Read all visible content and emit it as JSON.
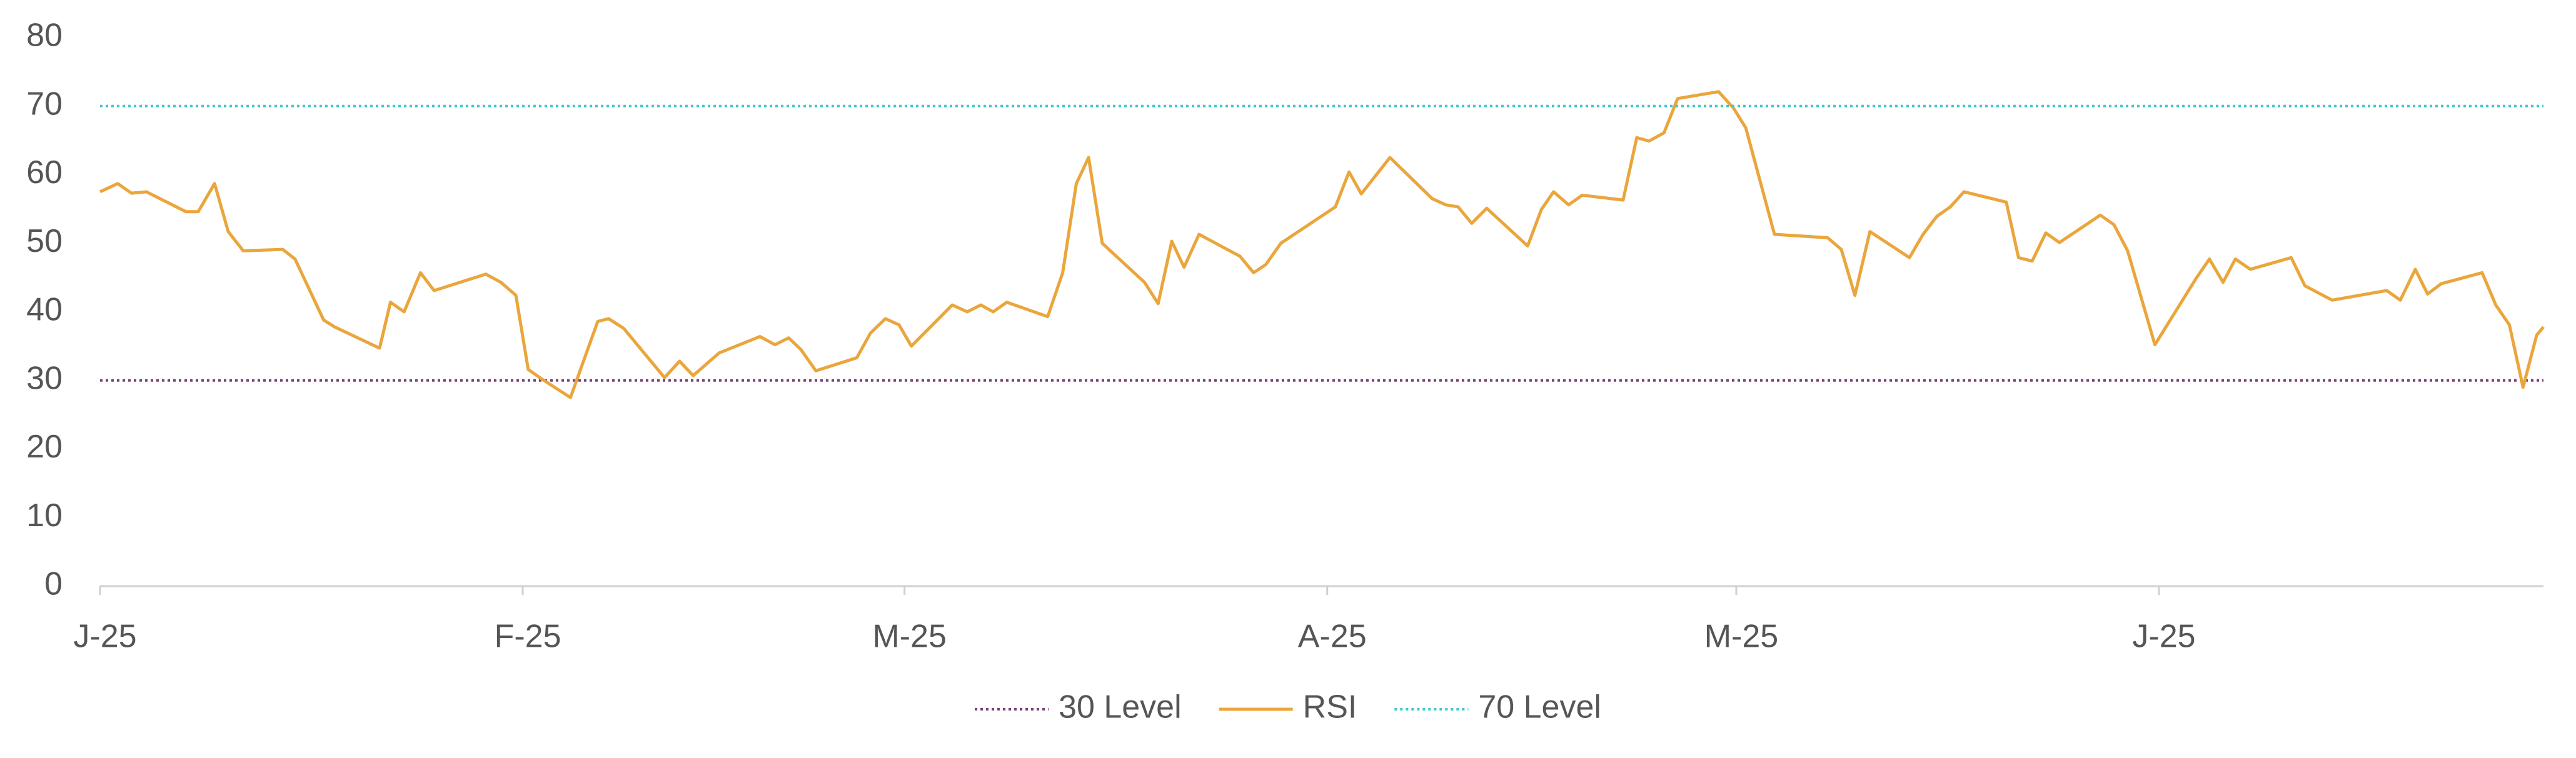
{
  "chart_data": {
    "type": "line",
    "xlim": [
      0,
      179.2
    ],
    "xticks": [
      {
        "value": 0,
        "label": "J-25"
      },
      {
        "value": 31,
        "label": "F-25"
      },
      {
        "value": 59,
        "label": "M-25"
      },
      {
        "value": 90,
        "label": "A-25"
      },
      {
        "value": 120,
        "label": "M-25"
      },
      {
        "value": 151,
        "label": "J-25"
      }
    ],
    "ylim": [
      0,
      80
    ],
    "yticks": [
      0,
      10,
      20,
      30,
      40,
      50,
      60,
      70,
      80
    ],
    "legend": "bottom",
    "x": [
      0,
      1.3,
      2.3,
      3.4,
      6.3,
      7.2,
      8.4,
      9.4,
      10.5,
      13.4,
      14.3,
      16.4,
      17.2,
      20.5,
      21.3,
      22.3,
      23.5,
      24.5,
      28.3,
      29.4,
      30.5,
      31.4,
      32.4,
      34.5,
      36.5,
      37.3,
      38.4,
      41.4,
      42.5,
      43.5,
      45.4,
      48.4,
      49.5,
      50.5,
      51.4,
      52.5,
      55.5,
      56.5,
      57.6,
      58.6,
      59.5,
      62.5,
      63.6,
      64.6,
      65.5,
      66.5,
      69.5,
      70.6,
      71.6,
      72.5,
      73.5,
      76.6,
      77.6,
      78.6,
      79.5,
      80.6,
      83.6,
      84.6,
      85.5,
      86.6,
      90.6,
      91.6,
      92.5,
      94.6,
      97.7,
      98.7,
      99.6,
      100.6,
      101.7,
      104.7,
      105.7,
      106.6,
      107.7,
      108.7,
      111.7,
      112.7,
      113.6,
      114.7,
      115.7,
      118.7,
      119.8,
      120.7,
      122.8,
      126.7,
      127.7,
      128.7,
      129.8,
      132.7,
      133.7,
      134.7,
      135.7,
      136.7,
      139.8,
      140.7,
      141.7,
      142.7,
      143.7,
      146.7,
      147.7,
      148.7,
      150.7,
      153.7,
      154.7,
      155.7,
      156.6,
      157.7,
      160.7,
      161.7,
      163.7,
      167.7,
      168.7,
      169.8,
      170.7,
      171.7,
      174.7,
      175.7,
      176.7,
      177.7,
      178.7,
      179.2
    ],
    "series": [
      {
        "name": "30 Level",
        "color": "#7a3d7a",
        "dash": "dotted",
        "value": 30
      },
      {
        "name": "RSI",
        "color": "#eaa63c",
        "dash": "solid",
        "values": [
          57.5,
          58.7,
          57.3,
          57.5,
          54.6,
          54.6,
          58.7,
          51.7,
          48.9,
          49.1,
          47.7,
          38.8,
          37.8,
          34.7,
          41.4,
          40,
          45.7,
          43.1,
          45.5,
          44.3,
          42.4,
          31.6,
          30.2,
          27.5,
          38.6,
          39,
          37.6,
          30.4,
          32.8,
          30.7,
          34,
          36.4,
          35.2,
          36.2,
          34.5,
          31.4,
          33.3,
          36.9,
          39,
          38.1,
          35,
          41,
          40,
          41,
          40,
          41.4,
          39.3,
          45.7,
          58.7,
          62.5,
          50,
          44.3,
          41.2,
          50.3,
          46.5,
          51.3,
          48.1,
          45.7,
          46.9,
          50,
          55.3,
          60.4,
          57.2,
          62.5,
          56.5,
          55.6,
          55.3,
          52.9,
          55.1,
          49.6,
          54.9,
          57.5,
          55.6,
          57,
          56.3,
          65.4,
          64.9,
          66.1,
          71.1,
          72.1,
          69.7,
          66.8,
          51.3,
          50.8,
          49.1,
          42.4,
          51.7,
          47.9,
          51.3,
          53.9,
          55.3,
          57.5,
          56,
          47.9,
          47.4,
          51.5,
          50.1,
          54.1,
          52.7,
          48.9,
          35.2,
          44.8,
          47.7,
          44.3,
          47.7,
          46.2,
          47.9,
          43.8,
          41.7,
          43.1,
          41.7,
          46.2,
          42.6,
          44.1,
          45.7,
          41,
          38.1,
          29,
          36.6,
          37.8
        ]
      },
      {
        "name": "70 Level",
        "color": "#3cc8cf",
        "dash": "dotted",
        "value": 70
      }
    ]
  }
}
